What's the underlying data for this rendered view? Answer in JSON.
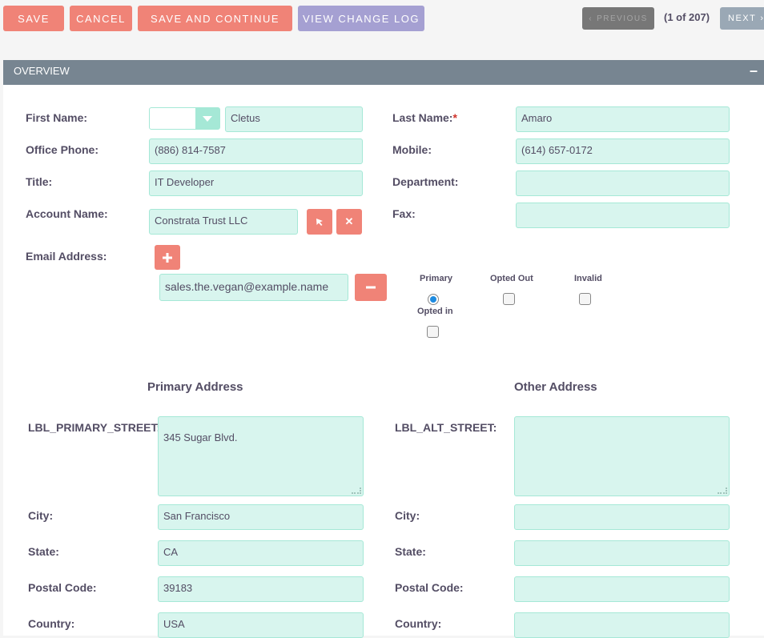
{
  "toolbar": {
    "save": "SAVE",
    "cancel": "CANCEL",
    "save_continue": "SAVE AND CONTINUE",
    "view_change_log": "VIEW CHANGE LOG",
    "previous": "PREVIOUS",
    "page_counter": "(1 of 207)",
    "next": "NEXT"
  },
  "panel": {
    "title": "OVERVIEW",
    "collapse_symbol": "–"
  },
  "form": {
    "first_name": {
      "label": "First Name:",
      "salutation": "",
      "value": "Cletus"
    },
    "last_name": {
      "label": "Last Name:",
      "required_mark": "*",
      "value": "Amaro"
    },
    "office_phone": {
      "label": "Office Phone:",
      "value": "(886) 814-7587"
    },
    "mobile": {
      "label": "Mobile:",
      "value": "(614) 657-0172"
    },
    "title": {
      "label": "Title:",
      "value": "IT Developer"
    },
    "department": {
      "label": "Department:",
      "value": ""
    },
    "account_name": {
      "label": "Account Name:",
      "value": "Constrata Trust LLC"
    },
    "fax": {
      "label": "Fax:",
      "value": ""
    },
    "email": {
      "label": "Email Address:",
      "value": "sales.the.vegan@example.name",
      "col_primary": "Primary",
      "col_opted_out": "Opted Out",
      "col_invalid": "Invalid",
      "col_opted_in": "Opted in"
    },
    "primary_address": {
      "heading": "Primary Address",
      "street_label": "LBL_PRIMARY_STREET:",
      "street": "345 Sugar Blvd.",
      "city_label": "City:",
      "city": "San Francisco",
      "state_label": "State:",
      "state": "CA",
      "postal_label": "Postal Code:",
      "postal": "39183",
      "country_label": "Country:",
      "country": "USA"
    },
    "other_address": {
      "heading": "Other Address",
      "street_label": "LBL_ALT_STREET:",
      "street": "",
      "city_label": "City:",
      "city": "",
      "state_label": "State:",
      "state": "",
      "postal_label": "Postal Code:",
      "postal": "",
      "country_label": "Country:",
      "country": ""
    }
  },
  "colors": {
    "primary_button": "#f08377",
    "secondary_button": "#a5a0d2",
    "panel_header": "#778591",
    "input_background": "#d8f5ee"
  }
}
